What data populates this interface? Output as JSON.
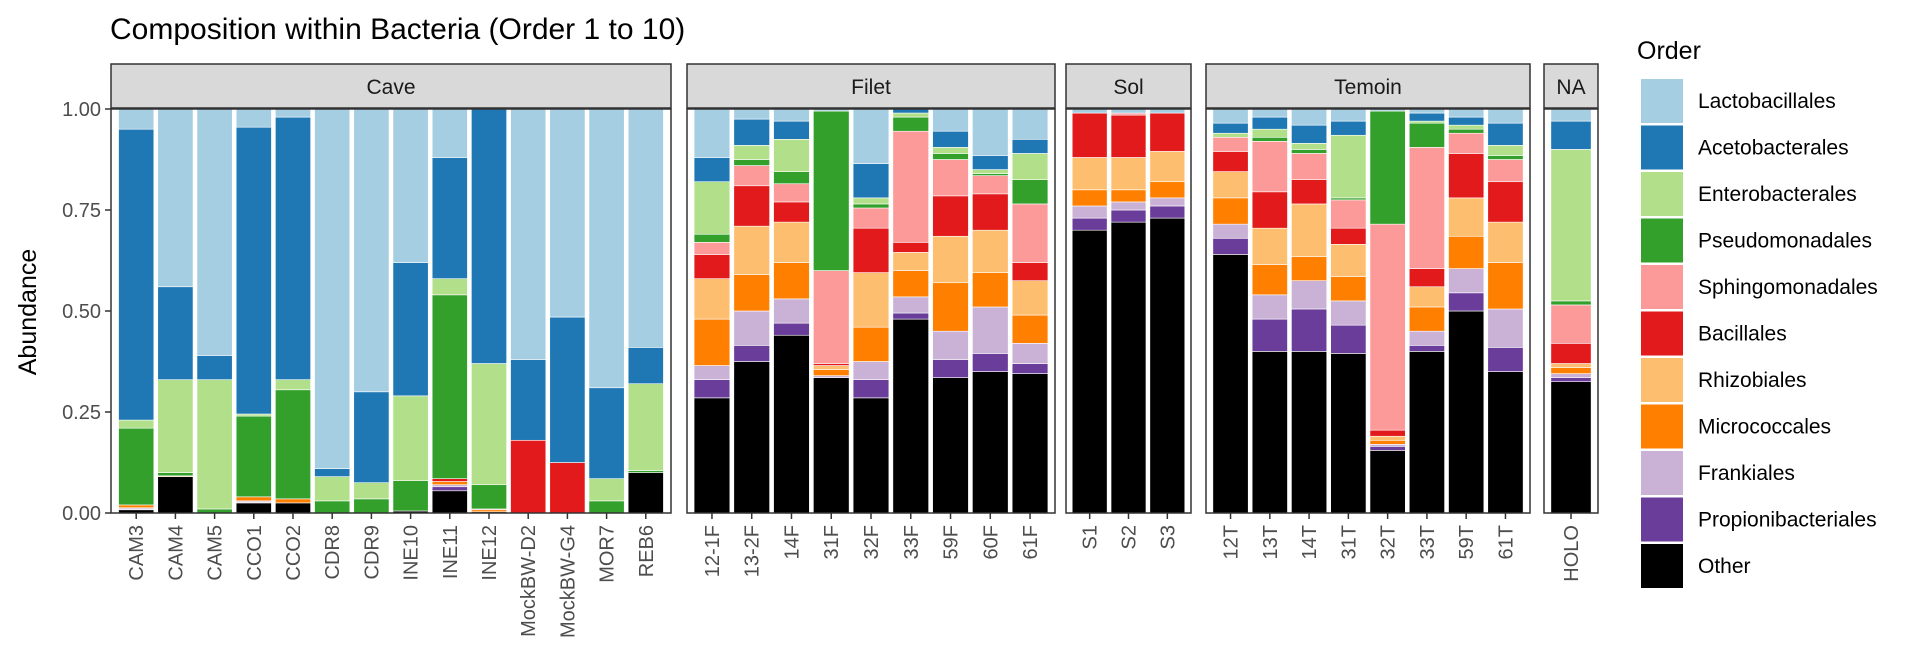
{
  "chart_data": {
    "type": "bar",
    "title": "Composition within Bacteria (Order 1 to 10)",
    "xlabel": "",
    "ylabel": "Abundance",
    "ylim": [
      0,
      1
    ],
    "yticks": [
      "0.00",
      "0.25",
      "0.50",
      "0.75",
      "1.00"
    ],
    "ytick_values": [
      0,
      0.25,
      0.5,
      0.75,
      1.0
    ],
    "grid": false,
    "legend": {
      "title": "Order",
      "placement": "right",
      "entries": [
        "Lactobacillales",
        "Acetobacterales",
        "Enterobacterales",
        "Pseudomonadales",
        "Sphingomonadales",
        "Bacillales",
        "Rhizobiales",
        "Micrococcales",
        "Frankiales",
        "Propionibacteriales",
        "Other"
      ]
    },
    "colors": {
      "Lactobacillales": "#a6cee3",
      "Acetobacterales": "#1f78b4",
      "Enterobacterales": "#b2df8a",
      "Pseudomonadales": "#33a02c",
      "Sphingomonadales": "#fb9a99",
      "Bacillales": "#e31a1c",
      "Rhizobiales": "#fdbf6f",
      "Micrococcales": "#ff7f00",
      "Frankiales": "#cab2d6",
      "Propionibacteriales": "#6a3d9a",
      "Other": "#000000"
    },
    "stack_order_bottom_to_top": [
      "Other",
      "Propionibacteriales",
      "Frankiales",
      "Micrococcales",
      "Rhizobiales",
      "Bacillales",
      "Sphingomonadales",
      "Pseudomonadales",
      "Enterobacterales",
      "Acetobacterales",
      "Lactobacillales"
    ],
    "panels": [
      {
        "label": "Cave",
        "samples": [
          {
            "name": "CAM3",
            "values": {
              "Other": 0.008,
              "Propionibacteriales": 0.002,
              "Frankiales": 0.003,
              "Micrococcales": 0.007,
              "Rhizobiales": 0.0,
              "Bacillales": 0.0,
              "Sphingomonadales": 0.0,
              "Pseudomonadales": 0.19,
              "Enterobacterales": 0.02,
              "Acetobacterales": 0.72,
              "Lactobacillales": 0.05
            }
          },
          {
            "name": "CAM4",
            "values": {
              "Other": 0.09,
              "Propionibacteriales": 0.0,
              "Frankiales": 0.0,
              "Micrococcales": 0.002,
              "Rhizobiales": 0.0,
              "Bacillales": 0.0,
              "Sphingomonadales": 0.0,
              "Pseudomonadales": 0.008,
              "Enterobacterales": 0.23,
              "Acetobacterales": 0.23,
              "Lactobacillales": 0.44
            }
          },
          {
            "name": "CAM5",
            "values": {
              "Other": 0.0,
              "Propionibacteriales": 0.0,
              "Frankiales": 0.0,
              "Micrococcales": 0.0,
              "Rhizobiales": 0.0,
              "Bacillales": 0.0,
              "Sphingomonadales": 0.0,
              "Pseudomonadales": 0.01,
              "Enterobacterales": 0.32,
              "Acetobacterales": 0.06,
              "Lactobacillales": 0.61
            }
          },
          {
            "name": "CCO1",
            "values": {
              "Other": 0.025,
              "Propionibacteriales": 0.002,
              "Frankiales": 0.003,
              "Micrococcales": 0.01,
              "Rhizobiales": 0.0,
              "Bacillales": 0.0,
              "Sphingomonadales": 0.0,
              "Pseudomonadales": 0.2,
              "Enterobacterales": 0.005,
              "Acetobacterales": 0.71,
              "Lactobacillales": 0.045
            }
          },
          {
            "name": "CCO2",
            "values": {
              "Other": 0.025,
              "Propionibacteriales": 0.0,
              "Frankiales": 0.0,
              "Micrococcales": 0.01,
              "Rhizobiales": 0.0,
              "Bacillales": 0.0,
              "Sphingomonadales": 0.0,
              "Pseudomonadales": 0.27,
              "Enterobacterales": 0.025,
              "Acetobacterales": 0.65,
              "Lactobacillales": 0.02
            }
          },
          {
            "name": "CDR8",
            "values": {
              "Other": 0.0,
              "Propionibacteriales": 0.0,
              "Frankiales": 0.0,
              "Micrococcales": 0.0,
              "Rhizobiales": 0.0,
              "Bacillales": 0.0,
              "Sphingomonadales": 0.0,
              "Pseudomonadales": 0.03,
              "Enterobacterales": 0.06,
              "Acetobacterales": 0.02,
              "Lactobacillales": 0.89
            }
          },
          {
            "name": "CDR9",
            "values": {
              "Other": 0.0,
              "Propionibacteriales": 0.0,
              "Frankiales": 0.0,
              "Micrococcales": 0.0,
              "Rhizobiales": 0.0,
              "Bacillales": 0.0,
              "Sphingomonadales": 0.0,
              "Pseudomonadales": 0.035,
              "Enterobacterales": 0.04,
              "Acetobacterales": 0.225,
              "Lactobacillales": 0.7
            }
          },
          {
            "name": "INE10",
            "values": {
              "Other": 0.005,
              "Propionibacteriales": 0.0,
              "Frankiales": 0.0,
              "Micrococcales": 0.0,
              "Rhizobiales": 0.0,
              "Bacillales": 0.0,
              "Sphingomonadales": 0.0,
              "Pseudomonadales": 0.075,
              "Enterobacterales": 0.21,
              "Acetobacterales": 0.33,
              "Lactobacillales": 0.38
            }
          },
          {
            "name": "INE11",
            "values": {
              "Other": 0.055,
              "Propionibacteriales": 0.01,
              "Frankiales": 0.005,
              "Micrococcales": 0.008,
              "Rhizobiales": 0.0,
              "Bacillales": 0.007,
              "Sphingomonadales": 0.0,
              "Pseudomonadales": 0.455,
              "Enterobacterales": 0.04,
              "Acetobacterales": 0.3,
              "Lactobacillales": 0.12
            }
          },
          {
            "name": "INE12",
            "values": {
              "Other": 0.003,
              "Propionibacteriales": 0.0,
              "Frankiales": 0.0,
              "Micrococcales": 0.005,
              "Rhizobiales": 0.0,
              "Bacillales": 0.002,
              "Sphingomonadales": 0.0,
              "Pseudomonadales": 0.06,
              "Enterobacterales": 0.3,
              "Acetobacterales": 0.63,
              "Lactobacillales": 0.0
            }
          },
          {
            "name": "MockBW-D2",
            "values": {
              "Other": 0.0,
              "Propionibacteriales": 0.0,
              "Frankiales": 0.0,
              "Micrococcales": 0.0,
              "Rhizobiales": 0.0,
              "Bacillales": 0.18,
              "Sphingomonadales": 0.0,
              "Pseudomonadales": 0.0,
              "Enterobacterales": 0.0,
              "Acetobacterales": 0.2,
              "Lactobacillales": 0.62
            }
          },
          {
            "name": "MockBW-G4",
            "values": {
              "Other": 0.0,
              "Propionibacteriales": 0.0,
              "Frankiales": 0.0,
              "Micrococcales": 0.0,
              "Rhizobiales": 0.0,
              "Bacillales": 0.125,
              "Sphingomonadales": 0.0,
              "Pseudomonadales": 0.0,
              "Enterobacterales": 0.0,
              "Acetobacterales": 0.36,
              "Lactobacillales": 0.515
            }
          },
          {
            "name": "MOR7",
            "values": {
              "Other": 0.0,
              "Propionibacteriales": 0.0,
              "Frankiales": 0.0,
              "Micrococcales": 0.0,
              "Rhizobiales": 0.0,
              "Bacillales": 0.0,
              "Sphingomonadales": 0.0,
              "Pseudomonadales": 0.03,
              "Enterobacterales": 0.055,
              "Acetobacterales": 0.225,
              "Lactobacillales": 0.69
            }
          },
          {
            "name": "REB6",
            "values": {
              "Other": 0.1,
              "Propionibacteriales": 0.0,
              "Frankiales": 0.0,
              "Micrococcales": 0.0,
              "Rhizobiales": 0.0,
              "Bacillales": 0.0,
              "Sphingomonadales": 0.0,
              "Pseudomonadales": 0.005,
              "Enterobacterales": 0.215,
              "Acetobacterales": 0.09,
              "Lactobacillales": 0.59
            }
          }
        ]
      },
      {
        "label": "Filet",
        "samples": [
          {
            "name": "12-1F",
            "values": {
              "Other": 0.285,
              "Propionibacteriales": 0.045,
              "Frankiales": 0.035,
              "Micrococcales": 0.115,
              "Rhizobiales": 0.1,
              "Bacillales": 0.06,
              "Sphingomonadales": 0.03,
              "Pseudomonadales": 0.02,
              "Enterobacterales": 0.13,
              "Acetobacterales": 0.06,
              "Lactobacillales": 0.12
            }
          },
          {
            "name": "13-2F",
            "values": {
              "Other": 0.375,
              "Propionibacteriales": 0.04,
              "Frankiales": 0.085,
              "Micrococcales": 0.09,
              "Rhizobiales": 0.12,
              "Bacillales": 0.1,
              "Sphingomonadales": 0.05,
              "Pseudomonadales": 0.015,
              "Enterobacterales": 0.035,
              "Acetobacterales": 0.065,
              "Lactobacillales": 0.025
            }
          },
          {
            "name": "14F",
            "values": {
              "Other": 0.44,
              "Propionibacteriales": 0.03,
              "Frankiales": 0.06,
              "Micrococcales": 0.09,
              "Rhizobiales": 0.1,
              "Bacillales": 0.05,
              "Sphingomonadales": 0.045,
              "Pseudomonadales": 0.03,
              "Enterobacterales": 0.08,
              "Acetobacterales": 0.045,
              "Lactobacillales": 0.03
            }
          },
          {
            "name": "31F",
            "values": {
              "Other": 0.335,
              "Propionibacteriales": 0.0,
              "Frankiales": 0.005,
              "Micrococcales": 0.015,
              "Rhizobiales": 0.01,
              "Bacillales": 0.005,
              "Sphingomonadales": 0.23,
              "Pseudomonadales": 0.395,
              "Enterobacterales": 0.0,
              "Acetobacterales": 0.0,
              "Lactobacillales": 0.005
            }
          },
          {
            "name": "32F",
            "values": {
              "Other": 0.285,
              "Propionibacteriales": 0.045,
              "Frankiales": 0.045,
              "Micrococcales": 0.085,
              "Rhizobiales": 0.135,
              "Bacillales": 0.11,
              "Sphingomonadales": 0.05,
              "Pseudomonadales": 0.01,
              "Enterobacterales": 0.015,
              "Acetobacterales": 0.085,
              "Lactobacillales": 0.135
            }
          },
          {
            "name": "33F",
            "values": {
              "Other": 0.48,
              "Propionibacteriales": 0.015,
              "Frankiales": 0.04,
              "Micrococcales": 0.065,
              "Rhizobiales": 0.045,
              "Bacillales": 0.025,
              "Sphingomonadales": 0.275,
              "Pseudomonadales": 0.035,
              "Enterobacterales": 0.01,
              "Acetobacterales": 0.01,
              "Lactobacillales": 0.0
            }
          },
          {
            "name": "59F",
            "values": {
              "Other": 0.335,
              "Propionibacteriales": 0.045,
              "Frankiales": 0.07,
              "Micrococcales": 0.12,
              "Rhizobiales": 0.115,
              "Bacillales": 0.1,
              "Sphingomonadales": 0.09,
              "Pseudomonadales": 0.015,
              "Enterobacterales": 0.015,
              "Acetobacterales": 0.04,
              "Lactobacillales": 0.055
            }
          },
          {
            "name": "60F",
            "values": {
              "Other": 0.35,
              "Propionibacteriales": 0.045,
              "Frankiales": 0.115,
              "Micrococcales": 0.085,
              "Rhizobiales": 0.105,
              "Bacillales": 0.09,
              "Sphingomonadales": 0.045,
              "Pseudomonadales": 0.005,
              "Enterobacterales": 0.01,
              "Acetobacterales": 0.035,
              "Lactobacillales": 0.115
            }
          },
          {
            "name": "61F",
            "values": {
              "Other": 0.345,
              "Propionibacteriales": 0.025,
              "Frankiales": 0.05,
              "Micrococcales": 0.07,
              "Rhizobiales": 0.085,
              "Bacillales": 0.045,
              "Sphingomonadales": 0.145,
              "Pseudomonadales": 0.06,
              "Enterobacterales": 0.065,
              "Acetobacterales": 0.035,
              "Lactobacillales": 0.075
            }
          }
        ]
      },
      {
        "label": "Sol",
        "samples": [
          {
            "name": "S1",
            "values": {
              "Other": 0.7,
              "Propionibacteriales": 0.03,
              "Frankiales": 0.03,
              "Micrococcales": 0.04,
              "Rhizobiales": 0.08,
              "Bacillales": 0.11,
              "Sphingomonadales": 0.0,
              "Pseudomonadales": 0.0,
              "Enterobacterales": 0.0,
              "Acetobacterales": 0.0,
              "Lactobacillales": 0.01
            }
          },
          {
            "name": "S2",
            "values": {
              "Other": 0.72,
              "Propionibacteriales": 0.03,
              "Frankiales": 0.02,
              "Micrococcales": 0.03,
              "Rhizobiales": 0.08,
              "Bacillales": 0.105,
              "Sphingomonadales": 0.005,
              "Pseudomonadales": 0.0,
              "Enterobacterales": 0.0,
              "Acetobacterales": 0.0,
              "Lactobacillales": 0.01
            }
          },
          {
            "name": "S3",
            "values": {
              "Other": 0.73,
              "Propionibacteriales": 0.03,
              "Frankiales": 0.02,
              "Micrococcales": 0.04,
              "Rhizobiales": 0.075,
              "Bacillales": 0.095,
              "Sphingomonadales": 0.0,
              "Pseudomonadales": 0.0,
              "Enterobacterales": 0.0,
              "Acetobacterales": 0.0,
              "Lactobacillales": 0.01
            }
          }
        ]
      },
      {
        "label": "Temoin",
        "samples": [
          {
            "name": "12T",
            "values": {
              "Other": 0.64,
              "Propionibacteriales": 0.04,
              "Frankiales": 0.035,
              "Micrococcales": 0.065,
              "Rhizobiales": 0.065,
              "Bacillales": 0.05,
              "Sphingomonadales": 0.035,
              "Pseudomonadales": 0.0,
              "Enterobacterales": 0.01,
              "Acetobacterales": 0.025,
              "Lactobacillales": 0.035
            }
          },
          {
            "name": "13T",
            "values": {
              "Other": 0.4,
              "Propionibacteriales": 0.08,
              "Frankiales": 0.06,
              "Micrococcales": 0.075,
              "Rhizobiales": 0.09,
              "Bacillales": 0.09,
              "Sphingomonadales": 0.125,
              "Pseudomonadales": 0.01,
              "Enterobacterales": 0.02,
              "Acetobacterales": 0.03,
              "Lactobacillales": 0.02
            }
          },
          {
            "name": "14T",
            "values": {
              "Other": 0.4,
              "Propionibacteriales": 0.105,
              "Frankiales": 0.07,
              "Micrococcales": 0.06,
              "Rhizobiales": 0.13,
              "Bacillales": 0.06,
              "Sphingomonadales": 0.065,
              "Pseudomonadales": 0.01,
              "Enterobacterales": 0.015,
              "Acetobacterales": 0.045,
              "Lactobacillales": 0.04
            }
          },
          {
            "name": "31T",
            "values": {
              "Other": 0.395,
              "Propionibacteriales": 0.07,
              "Frankiales": 0.06,
              "Micrococcales": 0.06,
              "Rhizobiales": 0.08,
              "Bacillales": 0.04,
              "Sphingomonadales": 0.07,
              "Pseudomonadales": 0.005,
              "Enterobacterales": 0.155,
              "Acetobacterales": 0.035,
              "Lactobacillales": 0.03
            }
          },
          {
            "name": "32T",
            "values": {
              "Other": 0.155,
              "Propionibacteriales": 0.01,
              "Frankiales": 0.005,
              "Micrococcales": 0.01,
              "Rhizobiales": 0.01,
              "Bacillales": 0.015,
              "Sphingomonadales": 0.51,
              "Pseudomonadales": 0.28,
              "Enterobacterales": 0.0,
              "Acetobacterales": 0.0,
              "Lactobacillales": 0.005
            }
          },
          {
            "name": "33T",
            "values": {
              "Other": 0.4,
              "Propionibacteriales": 0.015,
              "Frankiales": 0.035,
              "Micrococcales": 0.06,
              "Rhizobiales": 0.05,
              "Bacillales": 0.045,
              "Sphingomonadales": 0.3,
              "Pseudomonadales": 0.06,
              "Enterobacterales": 0.005,
              "Acetobacterales": 0.02,
              "Lactobacillales": 0.01
            }
          },
          {
            "name": "59T",
            "values": {
              "Other": 0.5,
              "Propionibacteriales": 0.045,
              "Frankiales": 0.06,
              "Micrococcales": 0.08,
              "Rhizobiales": 0.095,
              "Bacillales": 0.11,
              "Sphingomonadales": 0.05,
              "Pseudomonadales": 0.01,
              "Enterobacterales": 0.01,
              "Acetobacterales": 0.02,
              "Lactobacillales": 0.02
            }
          },
          {
            "name": "61T",
            "values": {
              "Other": 0.35,
              "Propionibacteriales": 0.06,
              "Frankiales": 0.095,
              "Micrococcales": 0.115,
              "Rhizobiales": 0.1,
              "Bacillales": 0.1,
              "Sphingomonadales": 0.055,
              "Pseudomonadales": 0.01,
              "Enterobacterales": 0.025,
              "Acetobacterales": 0.055,
              "Lactobacillales": 0.035
            }
          }
        ]
      },
      {
        "label": "NA",
        "samples": [
          {
            "name": "HOLO",
            "values": {
              "Other": 0.325,
              "Propionibacteriales": 0.01,
              "Frankiales": 0.01,
              "Micrococcales": 0.015,
              "Rhizobiales": 0.01,
              "Bacillales": 0.05,
              "Sphingomonadales": 0.095,
              "Pseudomonadales": 0.01,
              "Enterobacterales": 0.375,
              "Acetobacterales": 0.07,
              "Lactobacillales": 0.03
            }
          }
        ]
      }
    ]
  }
}
